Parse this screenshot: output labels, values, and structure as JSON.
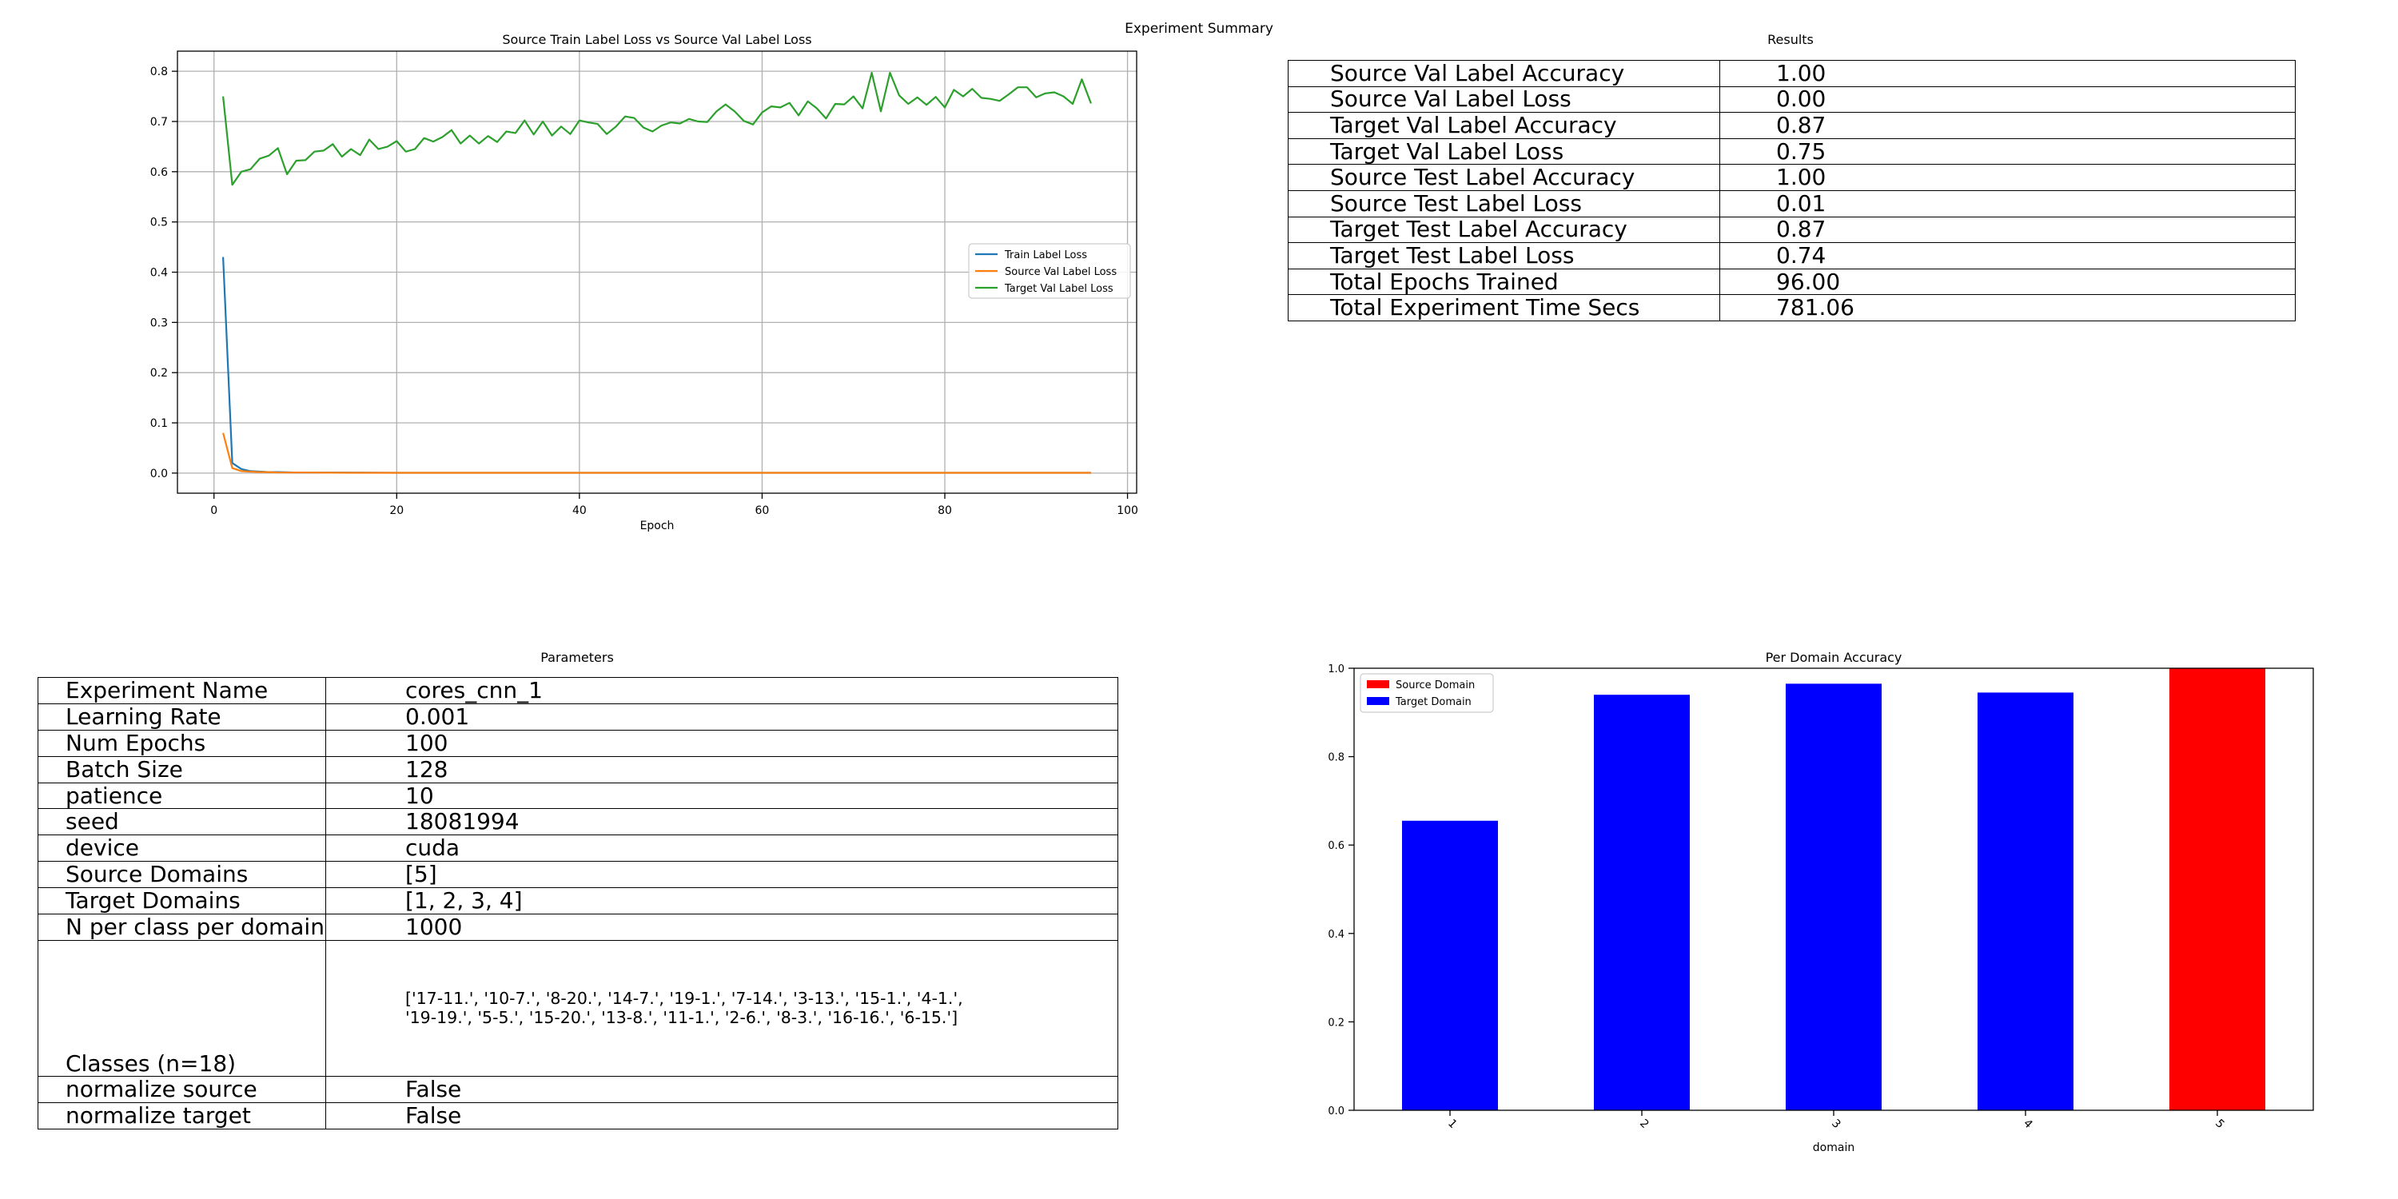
{
  "figure": {
    "suptitle": "Experiment Summary"
  },
  "loss_chart": {
    "title": "Source Train Label Loss vs Source Val Label Loss",
    "xlabel": "Epoch",
    "xticks": [
      "0",
      "20",
      "40",
      "60",
      "80",
      "100"
    ],
    "yticks": [
      "0.0",
      "0.1",
      "0.2",
      "0.3",
      "0.4",
      "0.5",
      "0.6",
      "0.7",
      "0.8"
    ],
    "legend": [
      "Train Label Loss",
      "Source Val Label Loss",
      "Target Val Label Loss"
    ]
  },
  "results": {
    "title": "Results",
    "rows": [
      {
        "key": "Source Val Label Accuracy",
        "value": "1.00"
      },
      {
        "key": "Source Val Label Loss",
        "value": "0.00"
      },
      {
        "key": "Target Val Label Accuracy",
        "value": "0.87"
      },
      {
        "key": "Target Val Label Loss",
        "value": "0.75"
      },
      {
        "key": "Source Test Label Accuracy",
        "value": "1.00"
      },
      {
        "key": "Source Test Label Loss",
        "value": "0.01"
      },
      {
        "key": "Target Test Label Accuracy",
        "value": "0.87"
      },
      {
        "key": "Target Test Label Loss",
        "value": "0.74"
      },
      {
        "key": "Total Epochs Trained",
        "value": "96.00"
      },
      {
        "key": "Total Experiment Time Secs",
        "value": "781.06"
      }
    ]
  },
  "parameters": {
    "title": "Parameters",
    "rows": [
      {
        "key": "Experiment Name",
        "value": "cores_cnn_1"
      },
      {
        "key": "Learning Rate",
        "value": "0.001"
      },
      {
        "key": "Num Epochs",
        "value": "100"
      },
      {
        "key": "Batch Size",
        "value": "128"
      },
      {
        "key": "patience",
        "value": "10"
      },
      {
        "key": "seed",
        "value": "18081994"
      },
      {
        "key": "device",
        "value": "cuda"
      },
      {
        "key": "Source Domains",
        "value": "[5]"
      },
      {
        "key": "Target Domains",
        "value": "[1, 2, 3, 4]"
      },
      {
        "key": "N per class per domain",
        "value": "1000"
      }
    ],
    "classes": {
      "key": "Classes (n=18)",
      "line1": "['17-11.', '10-7.', '8-20.', '14-7.', '19-1.', '7-14.', '3-13.', '15-1.', '4-1.',",
      "line2": "'19-19.', '5-5.', '15-20.', '13-8.', '11-1.', '2-6.', '8-3.', '16-16.', '6-15.']"
    },
    "rows_after": [
      {
        "key": "normalize source",
        "value": "False"
      },
      {
        "key": "normalize target",
        "value": "False"
      }
    ]
  },
  "accuracy_chart": {
    "title": "Per Domain Accuracy",
    "xlabel": "domain",
    "legend": [
      "Source Domain",
      "Target Domain"
    ]
  },
  "colors": {
    "train_loss": "#1f77b4",
    "source_val_loss": "#ff7f0e",
    "target_val_loss": "#2ca02c",
    "source_domain": "#ff0000",
    "target_domain": "#0000ff",
    "grid": "#b0b0b0"
  },
  "chart_data": [
    {
      "type": "line",
      "title": "Source Train Label Loss vs Source Val Label Loss",
      "xlabel": "Epoch",
      "ylabel": "",
      "xlim": [
        -4,
        101
      ],
      "ylim": [
        -0.04,
        0.84
      ],
      "grid": true,
      "legend_position": "center-right",
      "series": [
        {
          "name": "Train Label Loss",
          "x": [
            1,
            2,
            3,
            4,
            5,
            6,
            7,
            8,
            9,
            10,
            15,
            20,
            30,
            40,
            50,
            60,
            70,
            80,
            90,
            96
          ],
          "y": [
            0.43,
            0.02,
            0.008,
            0.004,
            0.003,
            0.002,
            0.002,
            0.0015,
            0.001,
            0.001,
            0.001,
            0.0005,
            0.0005,
            0.0005,
            0.0005,
            0.0005,
            0.0005,
            0.0005,
            0.0005,
            0.0005
          ]
        },
        {
          "name": "Source Val Label Loss",
          "x": [
            1,
            2,
            3,
            4,
            5,
            6,
            7,
            8,
            10,
            15,
            20,
            30,
            40,
            50,
            60,
            70,
            80,
            90,
            96
          ],
          "y": [
            0.08,
            0.01,
            0.004,
            0.003,
            0.002,
            0.002,
            0.001,
            0.001,
            0.001,
            0.0005,
            0.0005,
            0.0005,
            0.0005,
            0.0005,
            0.0005,
            0.0005,
            0.0005,
            0.0005,
            0.0005
          ]
        },
        {
          "name": "Target Val Label Loss",
          "x": [
            1,
            2,
            3,
            4,
            5,
            6,
            7,
            8,
            9,
            10,
            11,
            12,
            13,
            14,
            15,
            16,
            17,
            18,
            19,
            20,
            21,
            22,
            23,
            24,
            25,
            26,
            27,
            28,
            29,
            30,
            31,
            32,
            33,
            34,
            35,
            36,
            37,
            38,
            39,
            40,
            41,
            42,
            43,
            44,
            45,
            46,
            47,
            48,
            49,
            50,
            51,
            52,
            53,
            54,
            55,
            56,
            57,
            58,
            59,
            60,
            61,
            62,
            63,
            64,
            65,
            66,
            67,
            68,
            69,
            70,
            71,
            72,
            73,
            74,
            75,
            76,
            77,
            78,
            79,
            80,
            81,
            82,
            83,
            84,
            85,
            86,
            87,
            88,
            89,
            90,
            91,
            92,
            93,
            94,
            95,
            96
          ],
          "y": [
            0.75,
            0.574,
            0.6,
            0.605,
            0.626,
            0.632,
            0.647,
            0.595,
            0.622,
            0.623,
            0.64,
            0.642,
            0.655,
            0.63,
            0.645,
            0.633,
            0.664,
            0.645,
            0.65,
            0.661,
            0.64,
            0.645,
            0.667,
            0.66,
            0.669,
            0.683,
            0.656,
            0.672,
            0.656,
            0.671,
            0.659,
            0.68,
            0.677,
            0.702,
            0.674,
            0.7,
            0.672,
            0.69,
            0.675,
            0.702,
            0.698,
            0.695,
            0.675,
            0.69,
            0.71,
            0.707,
            0.688,
            0.68,
            0.692,
            0.698,
            0.696,
            0.705,
            0.7,
            0.699,
            0.72,
            0.734,
            0.72,
            0.701,
            0.694,
            0.718,
            0.73,
            0.728,
            0.737,
            0.712,
            0.74,
            0.726,
            0.706,
            0.735,
            0.734,
            0.75,
            0.726,
            0.797,
            0.72,
            0.797,
            0.752,
            0.735,
            0.748,
            0.733,
            0.749,
            0.728,
            0.763,
            0.75,
            0.765,
            0.747,
            0.745,
            0.741,
            0.754,
            0.768,
            0.768,
            0.748,
            0.756,
            0.758,
            0.75,
            0.735,
            0.784,
            0.736
          ]
        }
      ]
    },
    {
      "type": "bar",
      "title": "Per Domain Accuracy",
      "xlabel": "domain",
      "categories": [
        "1",
        "2",
        "3",
        "4",
        "5"
      ],
      "values": [
        0.655,
        0.94,
        0.965,
        0.945,
        1.0
      ],
      "bar_domain": [
        "target",
        "target",
        "target",
        "target",
        "source"
      ],
      "yticks": [
        "0.0",
        "0.2",
        "0.4",
        "0.6",
        "0.8",
        "1.0"
      ],
      "ylim": [
        0,
        1.0
      ],
      "grid": false,
      "legend_position": "top-left"
    }
  ]
}
